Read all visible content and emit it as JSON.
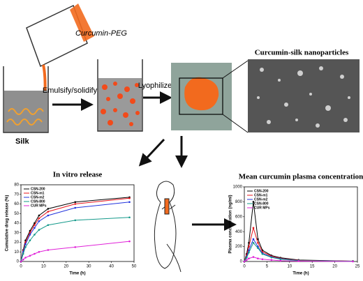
{
  "diagram": {
    "pour_label": "Curcumin-PEG",
    "silk_label": "Silk",
    "step1": "Emulsify/solidify",
    "step2": "Lyophilize",
    "nanoparticles_label": "Curcumin-silk nanoparticles"
  },
  "chart_data": [
    {
      "type": "line",
      "title": "In vitro release",
      "xlabel": "Time (h)",
      "ylabel": "Cumulative drug release (%)",
      "x": [
        0,
        1,
        2,
        4,
        6,
        8,
        12,
        24,
        48
      ],
      "series": [
        {
          "name": "CSN-200",
          "color": "#000000",
          "values": [
            0,
            12,
            22,
            32,
            40,
            48,
            55,
            62,
            67
          ]
        },
        {
          "name": "CSN-m1",
          "color": "#e8141c",
          "values": [
            0,
            11,
            20,
            30,
            38,
            45,
            52,
            60,
            66
          ]
        },
        {
          "name": "CSN-m2",
          "color": "#2233dd",
          "values": [
            0,
            10,
            18,
            28,
            35,
            42,
            48,
            56,
            62
          ]
        },
        {
          "name": "CSN-800",
          "color": "#13998a",
          "values": [
            0,
            8,
            15,
            22,
            28,
            33,
            38,
            43,
            46
          ]
        },
        {
          "name": "CUR MPs",
          "color": "#e020d8",
          "values": [
            0,
            2,
            4,
            6,
            8,
            10,
            12,
            15,
            21
          ]
        }
      ],
      "xlim": [
        0,
        50
      ],
      "xticks": [
        0,
        10,
        20,
        30,
        40,
        50
      ],
      "ylim": [
        0,
        80
      ],
      "yticks": [
        0,
        10,
        20,
        30,
        40,
        50,
        60,
        70,
        80
      ]
    },
    {
      "type": "line",
      "title": "Mean curcumin plasma concentration",
      "xlabel": "Time (h)",
      "ylabel": "Plasma concentration (ng/ml)",
      "x": [
        0,
        0.5,
        1,
        2,
        3,
        4,
        6,
        8,
        12,
        24
      ],
      "series": [
        {
          "name": "CSN-200",
          "color": "#000000",
          "values": [
            0,
            100,
            250,
            800,
            300,
            150,
            80,
            50,
            20,
            5
          ]
        },
        {
          "name": "CSN-m1",
          "color": "#e8141c",
          "values": [
            0,
            80,
            200,
            450,
            250,
            130,
            70,
            40,
            15,
            5
          ]
        },
        {
          "name": "CSN-m2",
          "color": "#2233dd",
          "values": [
            0,
            60,
            150,
            300,
            200,
            110,
            60,
            35,
            12,
            3
          ]
        },
        {
          "name": "CSN-800",
          "color": "#13998a",
          "values": [
            0,
            50,
            120,
            250,
            180,
            100,
            55,
            30,
            10,
            3
          ]
        },
        {
          "name": "CUR MPs",
          "color": "#e020d8",
          "values": [
            0,
            20,
            40,
            60,
            40,
            30,
            20,
            10,
            5,
            0
          ]
        }
      ],
      "xlim": [
        0,
        25
      ],
      "xticks": [
        0,
        5,
        10,
        15,
        20,
        25
      ],
      "ylim": [
        0,
        1000
      ],
      "yticks": [
        0,
        200,
        400,
        600,
        800,
        1000
      ]
    }
  ]
}
